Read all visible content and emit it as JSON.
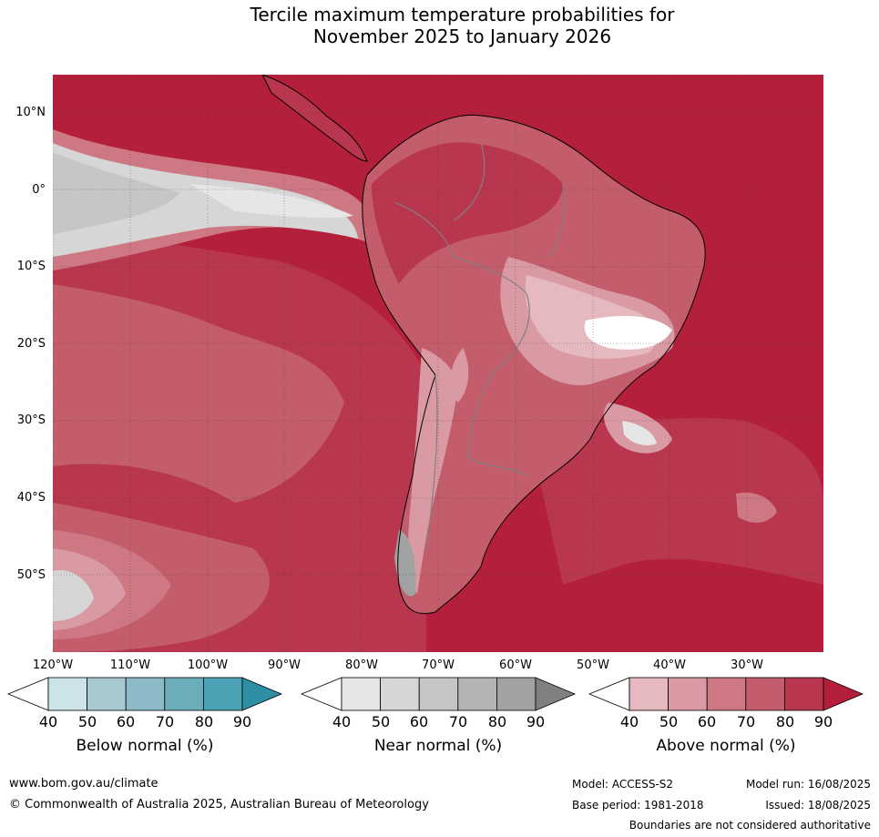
{
  "title": {
    "line1": "Tercile maximum temperature probabilities for",
    "line2": "November 2025 to January 2026"
  },
  "axes": {
    "lat_labels": [
      "10°N",
      "0°",
      "10°S",
      "20°S",
      "30°S",
      "40°S",
      "50°S"
    ],
    "lon_labels": [
      "120°W",
      "110°W",
      "100°W",
      "90°W",
      "80°W",
      "70°W",
      "60°W",
      "50°W",
      "40°W",
      "30°W"
    ]
  },
  "legends": [
    {
      "name": "Below normal (%)",
      "ticks": [
        "40",
        "50",
        "60",
        "70",
        "80",
        "90"
      ],
      "colors": [
        "#ffffff",
        "#cce3ea",
        "#a9c9d0",
        "#8cbac6",
        "#6badba",
        "#4aa2b4",
        "#2e8ea3"
      ]
    },
    {
      "name": "Near normal (%)",
      "ticks": [
        "40",
        "50",
        "60",
        "70",
        "80",
        "90"
      ],
      "colors": [
        "#ffffff",
        "#e6e6e6",
        "#d6d6d6",
        "#c6c6c6",
        "#b4b4b4",
        "#a2a2a2",
        "#808080"
      ]
    },
    {
      "name": "Above normal (%)",
      "ticks": [
        "40",
        "50",
        "60",
        "70",
        "80",
        "90"
      ],
      "colors": [
        "#ffffff",
        "#e5b9bf",
        "#d99aa3",
        "#cd7882",
        "#c35d6b",
        "#b8364e",
        "#b41f3c"
      ]
    }
  ],
  "footer": {
    "url": "www.bom.gov.au/climate",
    "copyright": "© Commonwealth of Australia 2025, Australian Bureau of Meteorology",
    "model": "Model: ACCESS-S2",
    "base_period": "Base period: 1981-2018",
    "model_run": "Model run: 16/08/2025",
    "issued": "Issued: 18/08/2025",
    "disclaimer": "Boundaries are not considered authoritative"
  }
}
